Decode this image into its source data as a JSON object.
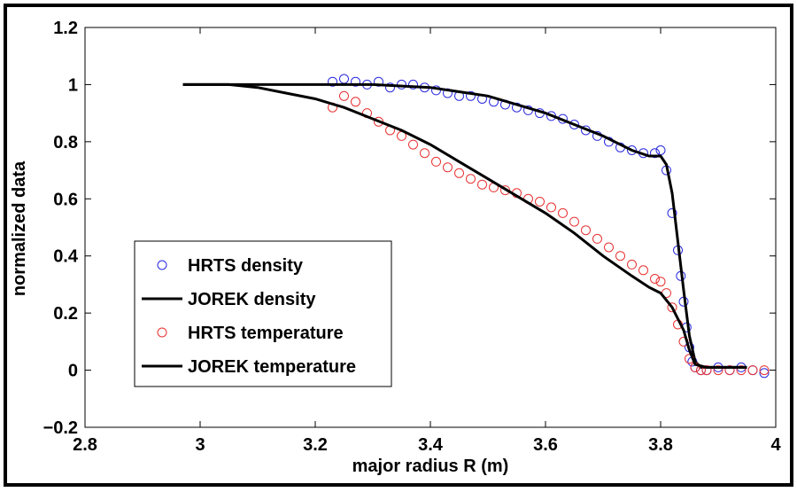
{
  "chart_data": {
    "type": "scatter",
    "title": "",
    "xlabel": "major radius R (m)",
    "ylabel": "normalized data",
    "xlim": [
      2.8,
      4.0
    ],
    "ylim": [
      -0.2,
      1.2
    ],
    "xticks": [
      2.8,
      3.0,
      3.2,
      3.4,
      3.6,
      3.8,
      4.0
    ],
    "xtick_labels": [
      "2.8",
      "3",
      "3.2",
      "3.4",
      "3.6",
      "3.8",
      "4"
    ],
    "yticks": [
      -0.2,
      0,
      0.2,
      0.4,
      0.6,
      0.8,
      1.0,
      1.2
    ],
    "ytick_labels": [
      "−0.2",
      "0",
      "0.2",
      "0.4",
      "0.6",
      "0.8",
      "1",
      "1.2"
    ],
    "grid": false,
    "legend_position": "bottom-left",
    "series": [
      {
        "name": "HRTS density",
        "kind": "scatter",
        "marker": "open-circle",
        "color": "#2a2adf",
        "x": [
          3.23,
          3.25,
          3.27,
          3.29,
          3.31,
          3.33,
          3.35,
          3.37,
          3.39,
          3.41,
          3.43,
          3.45,
          3.47,
          3.49,
          3.51,
          3.53,
          3.55,
          3.57,
          3.59,
          3.61,
          3.63,
          3.65,
          3.67,
          3.69,
          3.71,
          3.73,
          3.75,
          3.77,
          3.79,
          3.8,
          3.81,
          3.82,
          3.83,
          3.835,
          3.84,
          3.845,
          3.85,
          3.855,
          3.86,
          3.87,
          3.88,
          3.9,
          3.92,
          3.94,
          3.96,
          3.98
        ],
        "y": [
          1.01,
          1.02,
          1.01,
          1.0,
          1.01,
          0.99,
          1.0,
          1.0,
          0.99,
          0.98,
          0.97,
          0.96,
          0.96,
          0.95,
          0.94,
          0.93,
          0.92,
          0.91,
          0.9,
          0.89,
          0.88,
          0.86,
          0.84,
          0.82,
          0.8,
          0.78,
          0.77,
          0.76,
          0.76,
          0.77,
          0.7,
          0.55,
          0.42,
          0.33,
          0.24,
          0.15,
          0.08,
          0.03,
          0.01,
          0.0,
          0.0,
          0.01,
          0.0,
          0.01,
          0.0,
          -0.01
        ]
      },
      {
        "name": "JOREK density",
        "kind": "line",
        "color": "#000000",
        "x": [
          2.97,
          3.1,
          3.2,
          3.3,
          3.4,
          3.5,
          3.6,
          3.7,
          3.75,
          3.78,
          3.8,
          3.81,
          3.82,
          3.83,
          3.84,
          3.85,
          3.86,
          3.87,
          3.88,
          3.9,
          3.95
        ],
        "y": [
          1.0,
          1.0,
          1.0,
          1.0,
          0.99,
          0.96,
          0.9,
          0.82,
          0.77,
          0.75,
          0.75,
          0.72,
          0.62,
          0.45,
          0.28,
          0.12,
          0.03,
          0.01,
          0.01,
          0.01,
          0.01
        ]
      },
      {
        "name": "HRTS temperature",
        "kind": "scatter",
        "marker": "open-circle",
        "color": "#e83232",
        "x": [
          3.23,
          3.25,
          3.27,
          3.29,
          3.31,
          3.33,
          3.35,
          3.37,
          3.39,
          3.41,
          3.43,
          3.45,
          3.47,
          3.49,
          3.51,
          3.53,
          3.55,
          3.57,
          3.59,
          3.61,
          3.63,
          3.65,
          3.67,
          3.69,
          3.71,
          3.73,
          3.75,
          3.77,
          3.79,
          3.8,
          3.81,
          3.82,
          3.83,
          3.84,
          3.85,
          3.86,
          3.87,
          3.88,
          3.9,
          3.92,
          3.94,
          3.96,
          3.98
        ],
        "y": [
          0.92,
          0.96,
          0.94,
          0.9,
          0.87,
          0.84,
          0.82,
          0.79,
          0.76,
          0.73,
          0.71,
          0.69,
          0.67,
          0.65,
          0.64,
          0.63,
          0.62,
          0.6,
          0.59,
          0.57,
          0.55,
          0.52,
          0.49,
          0.46,
          0.43,
          0.4,
          0.37,
          0.35,
          0.32,
          0.31,
          0.27,
          0.22,
          0.16,
          0.1,
          0.04,
          0.01,
          0.0,
          0.0,
          0.0,
          0.0,
          0.0,
          0.0,
          0.0
        ]
      },
      {
        "name": "JOREK temperature",
        "kind": "line",
        "color": "#000000",
        "x": [
          2.97,
          3.05,
          3.1,
          3.15,
          3.2,
          3.25,
          3.3,
          3.35,
          3.4,
          3.45,
          3.5,
          3.55,
          3.6,
          3.65,
          3.7,
          3.75,
          3.78,
          3.8,
          3.82,
          3.84,
          3.85,
          3.86,
          3.88,
          3.95
        ],
        "y": [
          1.0,
          1.0,
          0.99,
          0.97,
          0.95,
          0.92,
          0.88,
          0.84,
          0.79,
          0.73,
          0.67,
          0.61,
          0.55,
          0.48,
          0.4,
          0.33,
          0.29,
          0.27,
          0.22,
          0.14,
          0.07,
          0.02,
          0.01,
          0.01
        ]
      }
    ]
  }
}
